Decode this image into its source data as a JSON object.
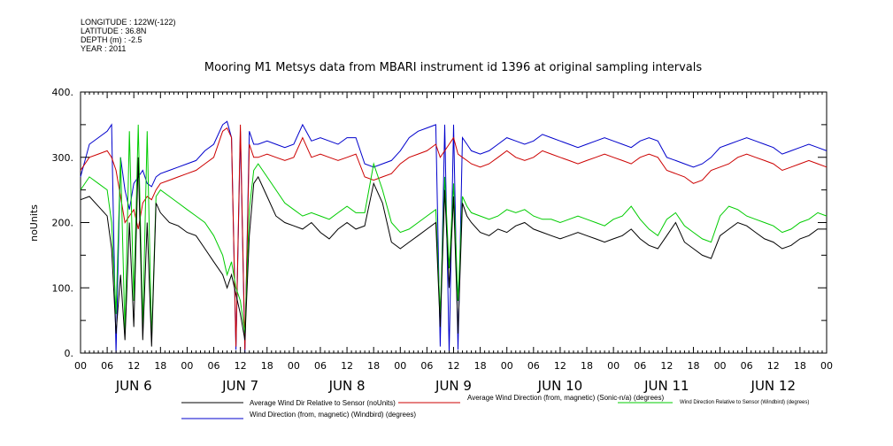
{
  "meta": {
    "longitude": "LONGITUDE : 122W(-122)",
    "latitude": "LATITUDE : 36.8N",
    "depth": "DEPTH (m) : -2.5",
    "year": "YEAR : 2011"
  },
  "chart_data": {
    "type": "line",
    "title": "Mooring M1 Metsys data from MBARI instrument id 1396 at original sampling intervals",
    "ylabel": "noUnits",
    "xlabel": "",
    "ylim": [
      0,
      400
    ],
    "yticks": [
      "0.",
      "100.",
      "200.",
      "300.",
      "400."
    ],
    "xlim_hours": [
      0,
      168
    ],
    "xtick_labels": [
      "00",
      "06",
      "12",
      "18",
      "00",
      "06",
      "12",
      "18",
      "00",
      "06",
      "12",
      "18",
      "00",
      "06",
      "12",
      "18",
      "00",
      "06",
      "12",
      "18",
      "00",
      "06",
      "12",
      "18",
      "00",
      "06",
      "12",
      "18",
      "00"
    ],
    "day_labels": [
      "JUN  6",
      "JUN  7",
      "JUN  8",
      "JUN  9",
      "JUN 10",
      "JUN 11",
      "JUN 12"
    ],
    "x_hours": [
      0,
      2,
      4,
      6,
      7,
      8,
      9,
      10,
      11,
      12,
      13,
      14,
      15,
      16,
      17,
      18,
      20,
      22,
      24,
      26,
      28,
      30,
      32,
      33,
      34,
      35,
      36,
      37,
      38,
      39,
      40,
      42,
      44,
      46,
      48,
      50,
      52,
      54,
      56,
      58,
      60,
      62,
      64,
      66,
      68,
      70,
      72,
      74,
      76,
      78,
      80,
      81,
      82,
      83,
      84,
      85,
      86,
      87,
      88,
      90,
      92,
      94,
      96,
      98,
      100,
      102,
      104,
      106,
      108,
      110,
      112,
      114,
      116,
      118,
      120,
      122,
      124,
      126,
      128,
      130,
      132,
      134,
      136,
      138,
      140,
      142,
      144,
      146,
      148,
      150,
      152,
      154,
      156,
      158,
      160,
      162,
      164,
      166,
      168
    ],
    "series": [
      {
        "name": "Average Wind Dir Relative to Sensor (noUnits)",
        "color": "#000000",
        "values": [
          235,
          240,
          225,
          210,
          160,
          30,
          120,
          20,
          200,
          40,
          300,
          20,
          200,
          10,
          230,
          215,
          200,
          195,
          185,
          180,
          160,
          140,
          120,
          100,
          120,
          90,
          60,
          20,
          180,
          260,
          270,
          240,
          210,
          200,
          195,
          190,
          200,
          185,
          175,
          190,
          200,
          190,
          195,
          260,
          230,
          170,
          160,
          170,
          180,
          190,
          200,
          40,
          250,
          100,
          240,
          30,
          230,
          210,
          200,
          185,
          180,
          190,
          185,
          195,
          200,
          190,
          185,
          180,
          175,
          180,
          185,
          180,
          175,
          170,
          175,
          180,
          190,
          175,
          165,
          160,
          180,
          200,
          170,
          160,
          150,
          145,
          180,
          190,
          200,
          195,
          185,
          175,
          170,
          160,
          165,
          175,
          180,
          190,
          190
        ]
      },
      {
        "name": "Average Wind Direction (from, magnetic) (Sonic-n/a) (degrees)",
        "color": "#cc0000",
        "values": [
          280,
          300,
          305,
          310,
          300,
          280,
          240,
          200,
          210,
          220,
          190,
          230,
          240,
          235,
          250,
          260,
          265,
          270,
          275,
          280,
          290,
          300,
          340,
          345,
          330,
          10,
          350,
          5,
          320,
          300,
          300,
          305,
          300,
          295,
          300,
          330,
          300,
          305,
          300,
          295,
          300,
          305,
          270,
          265,
          270,
          275,
          290,
          300,
          305,
          310,
          320,
          300,
          310,
          320,
          330,
          305,
          300,
          295,
          290,
          285,
          290,
          300,
          310,
          300,
          295,
          300,
          310,
          305,
          300,
          295,
          290,
          295,
          300,
          305,
          300,
          295,
          290,
          300,
          305,
          300,
          280,
          275,
          270,
          260,
          265,
          280,
          285,
          290,
          300,
          305,
          300,
          295,
          290,
          280,
          285,
          290,
          295,
          290,
          285
        ]
      },
      {
        "name": "Wind Direction Relative to Sensor (Windbird) (degrees)",
        "color": "#00cc00",
        "values": [
          250,
          270,
          260,
          250,
          200,
          60,
          300,
          30,
          340,
          80,
          350,
          40,
          340,
          20,
          240,
          250,
          240,
          230,
          220,
          210,
          200,
          180,
          150,
          120,
          140,
          100,
          80,
          30,
          220,
          280,
          290,
          270,
          250,
          230,
          220,
          210,
          215,
          210,
          205,
          215,
          225,
          215,
          215,
          290,
          250,
          200,
          185,
          190,
          200,
          210,
          220,
          60,
          270,
          130,
          260,
          80,
          240,
          225,
          215,
          210,
          205,
          210,
          220,
          215,
          220,
          210,
          205,
          205,
          200,
          205,
          210,
          205,
          200,
          195,
          205,
          210,
          225,
          205,
          190,
          180,
          205,
          215,
          195,
          185,
          175,
          170,
          210,
          225,
          220,
          210,
          205,
          200,
          195,
          185,
          190,
          200,
          205,
          215,
          210
        ]
      },
      {
        "name": "Wind Direction (from, magnetic) (Windbird) (degrees)",
        "color": "#0000cc",
        "values": [
          270,
          320,
          330,
          340,
          350,
          0,
          300,
          250,
          220,
          260,
          270,
          280,
          260,
          255,
          270,
          275,
          280,
          285,
          290,
          295,
          310,
          320,
          350,
          355,
          330,
          5,
          340,
          0,
          340,
          320,
          320,
          325,
          320,
          315,
          320,
          350,
          325,
          330,
          325,
          320,
          330,
          330,
          290,
          285,
          290,
          295,
          310,
          330,
          340,
          345,
          350,
          10,
          350,
          0,
          350,
          5,
          330,
          320,
          310,
          305,
          310,
          320,
          330,
          325,
          320,
          325,
          335,
          330,
          325,
          320,
          315,
          320,
          325,
          330,
          325,
          320,
          315,
          325,
          330,
          325,
          300,
          295,
          290,
          285,
          290,
          300,
          315,
          320,
          325,
          330,
          325,
          320,
          315,
          305,
          310,
          315,
          320,
          315,
          310
        ]
      }
    ],
    "legend_placement": "bottom",
    "grid": false
  }
}
